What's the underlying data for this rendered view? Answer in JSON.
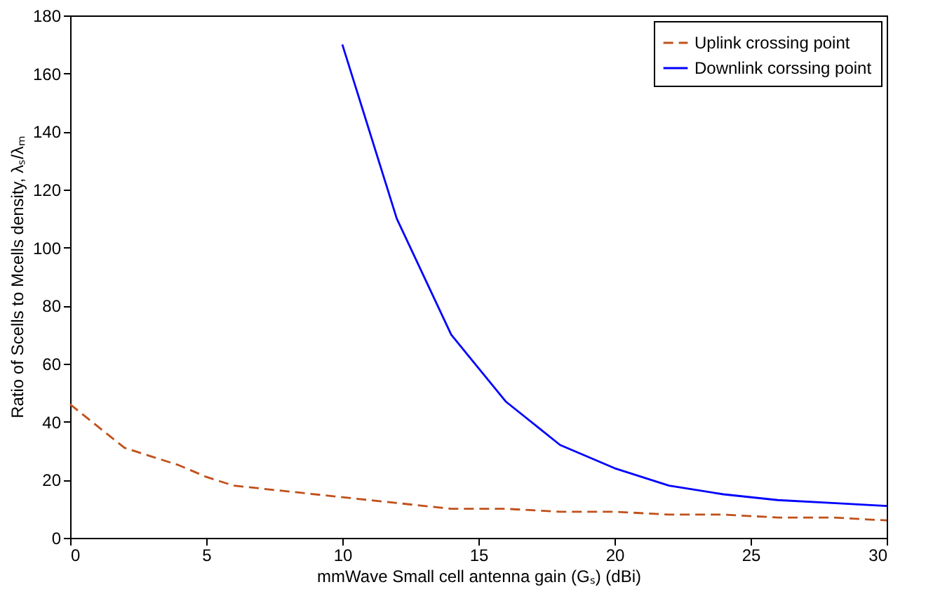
{
  "chart_data": {
    "type": "line",
    "xlabel": "mmWave Small cell antenna gain (Gₛ) (dBi)",
    "ylabel": "Ratio of Scells to Mcells density, λₛ/λₘ",
    "xlim": [
      0,
      30
    ],
    "xticks": [
      0,
      5,
      10,
      15,
      20,
      25,
      30
    ],
    "ylim": [
      0,
      180
    ],
    "yticks": [
      0,
      20,
      40,
      60,
      80,
      100,
      120,
      140,
      160,
      180
    ],
    "grid": false,
    "legend": "top right",
    "marker": "none",
    "series": [
      {
        "name": "Uplink crossing point",
        "color": "#c0501a",
        "line_style": "dashed",
        "x": [
          0,
          2,
          4,
          5,
          6,
          8,
          10,
          12,
          14,
          16,
          18,
          20,
          22,
          24,
          26,
          28,
          30
        ],
        "values": [
          46,
          31,
          25,
          21,
          18,
          16,
          14,
          12,
          10,
          10,
          9,
          9,
          8,
          8,
          7,
          7,
          6
        ]
      },
      {
        "name": "Downlink corssing point",
        "color": "#0000ff",
        "line_style": "solid",
        "x": [
          10,
          12,
          14,
          16,
          18,
          20,
          22,
          24,
          26,
          28,
          30
        ],
        "values": [
          170,
          110,
          70,
          47,
          32,
          24,
          18,
          15,
          13,
          12,
          11
        ]
      }
    ]
  }
}
